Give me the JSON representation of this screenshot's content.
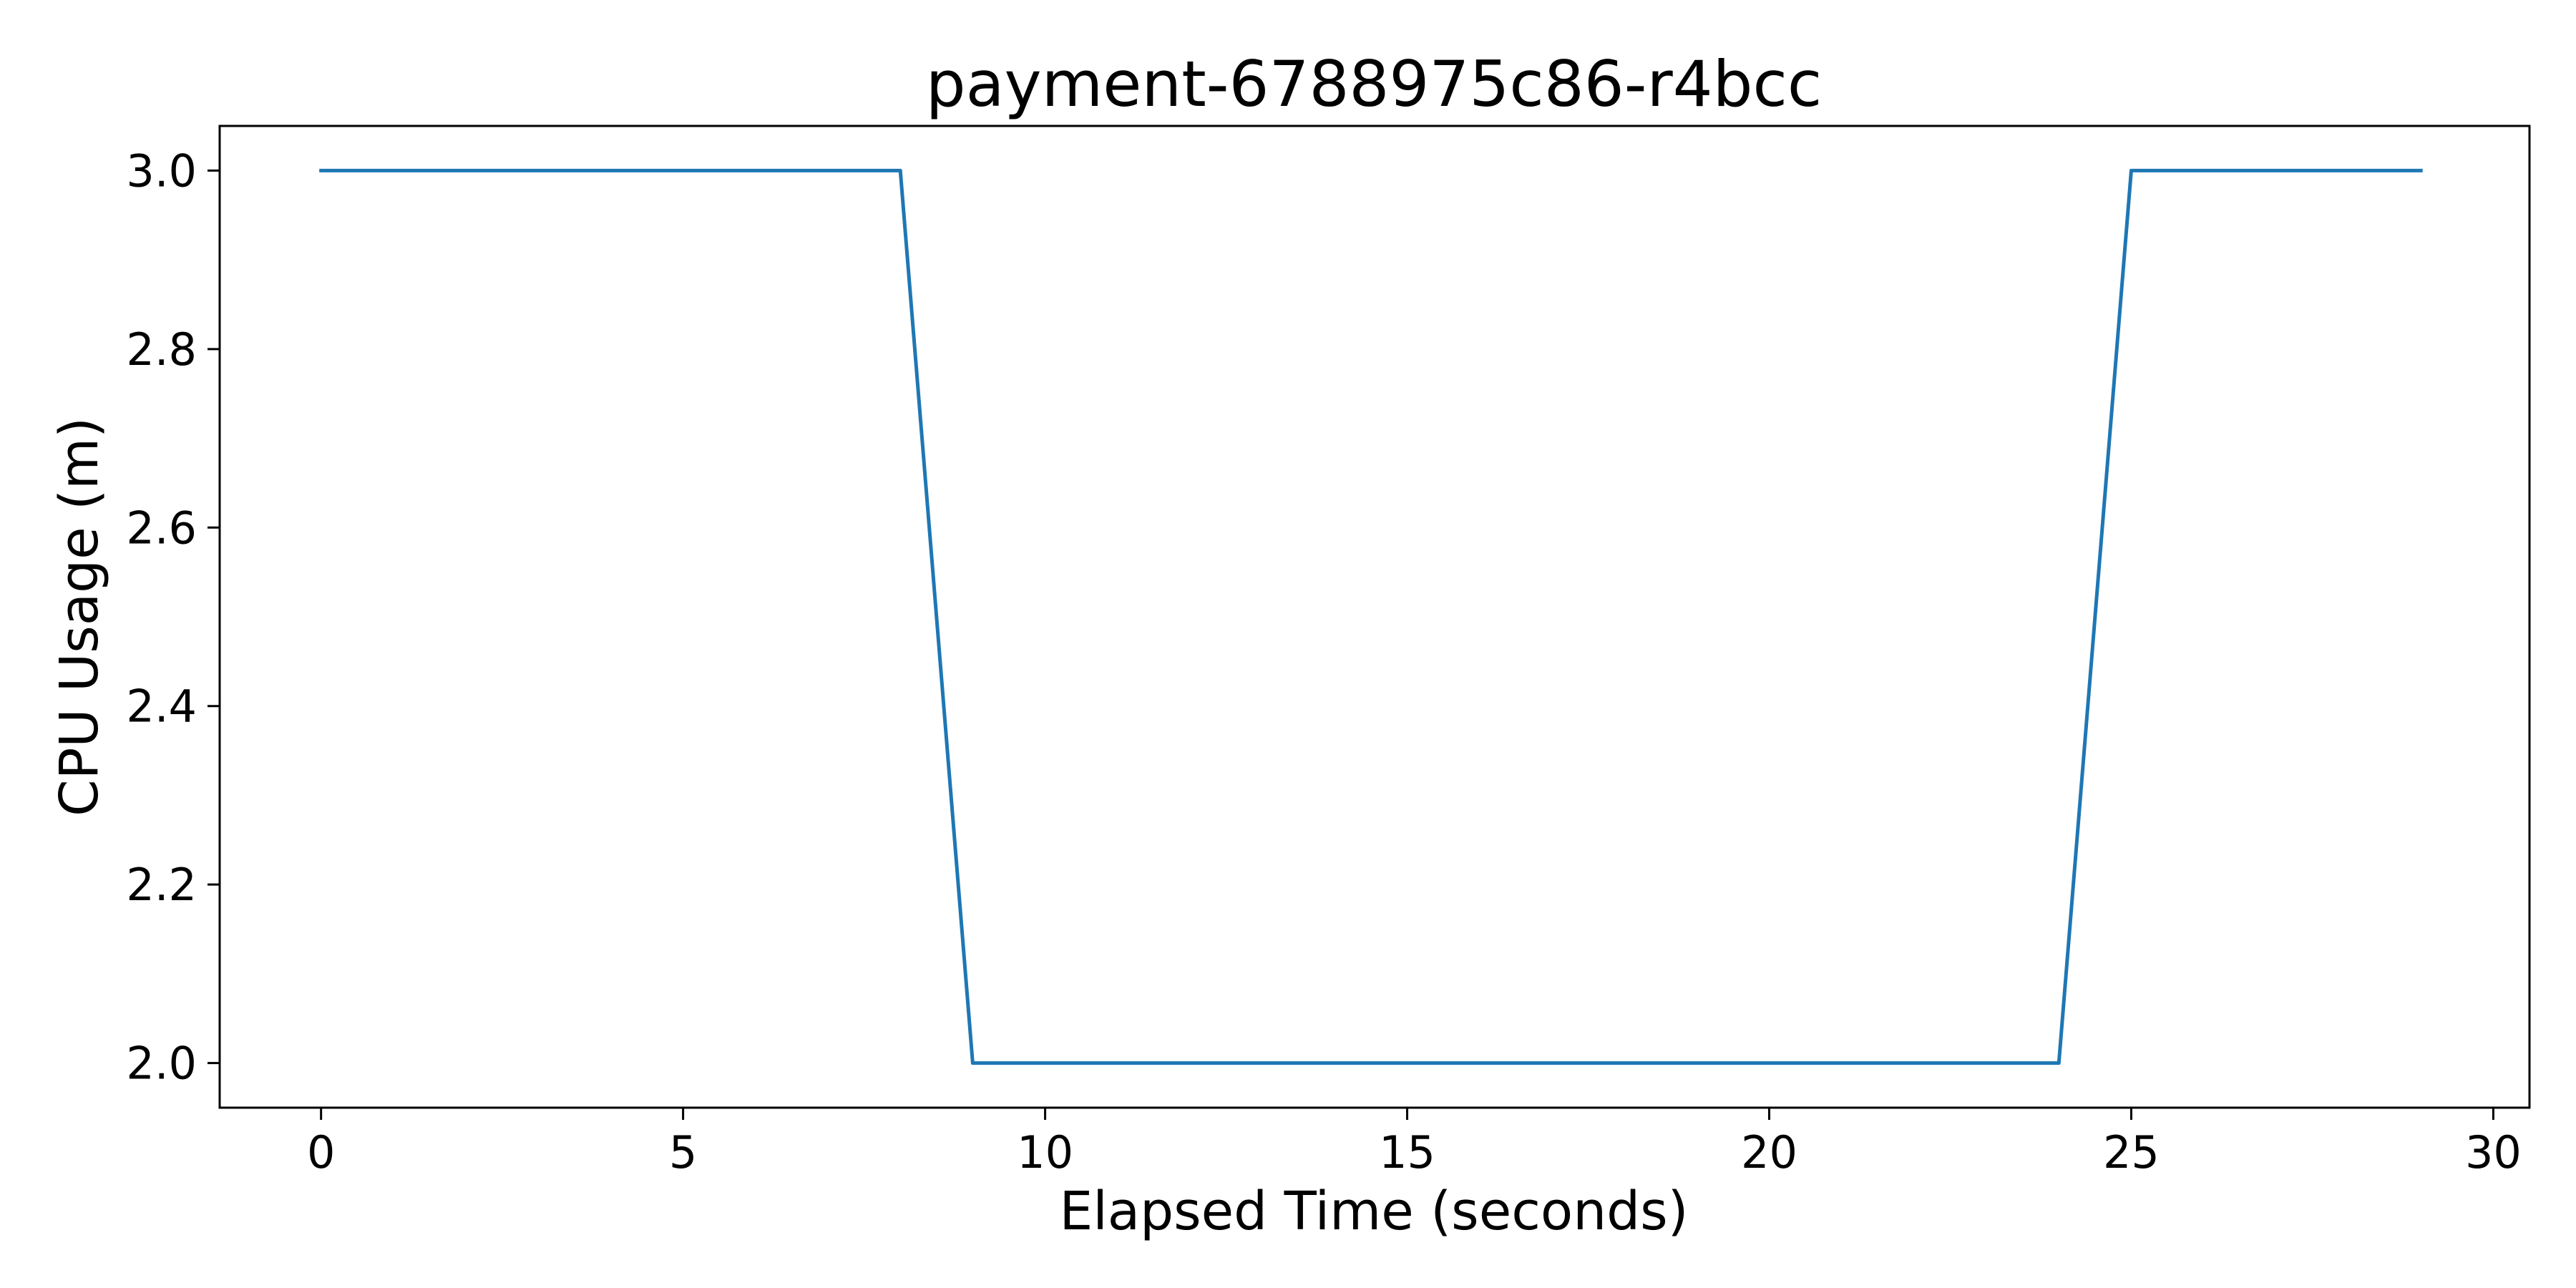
{
  "chart_data": {
    "type": "line",
    "title": "payment-6788975c86-r4bcc",
    "xlabel": "Elapsed Time (seconds)",
    "ylabel": "CPU Usage (m)",
    "xlim": [
      -1.4,
      30.5
    ],
    "ylim": [
      1.95,
      3.05
    ],
    "x_ticks": [
      0,
      5,
      10,
      15,
      20,
      25,
      30
    ],
    "y_ticks": [
      2.0,
      2.2,
      2.4,
      2.6,
      2.8,
      3.0
    ],
    "x_tick_labels": [
      "0",
      "5",
      "10",
      "15",
      "20",
      "25",
      "30"
    ],
    "y_tick_labels": [
      "2.0",
      "2.2",
      "2.4",
      "2.6",
      "2.8",
      "3.0"
    ],
    "grid": false,
    "series": [
      {
        "color": "#1f77b4",
        "x": [
          0,
          1,
          2,
          3,
          4,
          5,
          6,
          7,
          8,
          9,
          10,
          11,
          12,
          13,
          14,
          15,
          16,
          17,
          18,
          19,
          20,
          21,
          22,
          23,
          24,
          25,
          26,
          27,
          28,
          29
        ],
        "values": [
          3,
          3,
          3,
          3,
          3,
          3,
          3,
          3,
          3,
          2,
          2,
          2,
          2,
          2,
          2,
          2,
          2,
          2,
          2,
          2,
          2,
          2,
          2,
          2,
          2,
          3,
          3,
          3,
          3,
          3
        ]
      }
    ]
  }
}
